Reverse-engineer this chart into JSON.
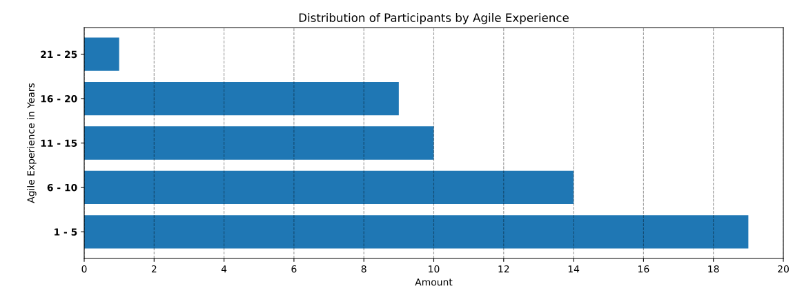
{
  "chart_data": {
    "type": "bar",
    "orientation": "horizontal",
    "title": "Distribution of Participants by Agile Experience",
    "xlabel": "Amount",
    "ylabel": "Agile Experience in Years",
    "categories": [
      "21 - 25",
      "16 - 20",
      "11 - 15",
      "6 - 10",
      "1 - 5"
    ],
    "values": [
      1,
      9,
      10,
      14,
      19
    ],
    "color": "#1f77b4",
    "xlim": [
      0,
      20
    ],
    "xticks": [
      0,
      2,
      4,
      6,
      8,
      10,
      12,
      14,
      16,
      18,
      20
    ],
    "grid": "x",
    "line_style": "dashed"
  }
}
